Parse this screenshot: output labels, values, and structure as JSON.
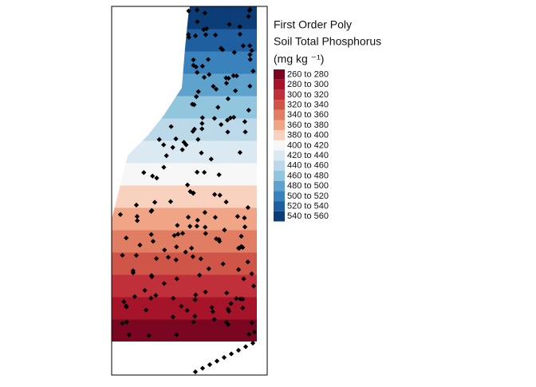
{
  "legend": {
    "title": [
      "First Order Poly",
      "Soil Total Phosphorus",
      "(mg kg ⁻¹)"
    ],
    "items": [
      {
        "label": "260 to 280",
        "color": "#7a0622"
      },
      {
        "label": "280 to 300",
        "color": "#a51429"
      },
      {
        "label": "300 to 320",
        "color": "#c0303a"
      },
      {
        "label": "320 to 340",
        "color": "#d05549"
      },
      {
        "label": "340 to 360",
        "color": "#e07d63"
      },
      {
        "label": "360 to 380",
        "color": "#f0a586"
      },
      {
        "label": "380 to 400",
        "color": "#f9d2bf"
      },
      {
        "label": "400 to 420",
        "color": "#f7f7f7"
      },
      {
        "label": "420 to 440",
        "color": "#dbe9f2"
      },
      {
        "label": "440 to 460",
        "color": "#bcd9ea"
      },
      {
        "label": "460 to 480",
        "color": "#92c5de"
      },
      {
        "label": "480 to 500",
        "color": "#5fa3cc"
      },
      {
        "label": "500 to 520",
        "color": "#3a82bb"
      },
      {
        "label": "520 to 540",
        "color": "#1f5fa0"
      },
      {
        "label": "540 to 560",
        "color": "#0c3d77"
      }
    ]
  }
}
